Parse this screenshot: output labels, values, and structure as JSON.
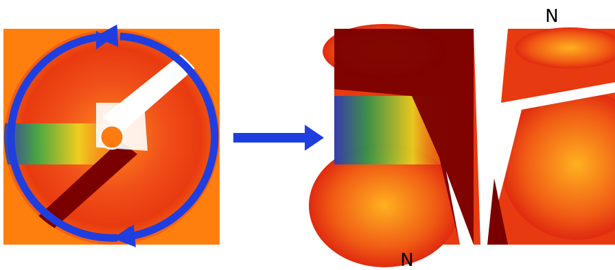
{
  "labels": {
    "top": "N",
    "bottom": "N"
  }
}
